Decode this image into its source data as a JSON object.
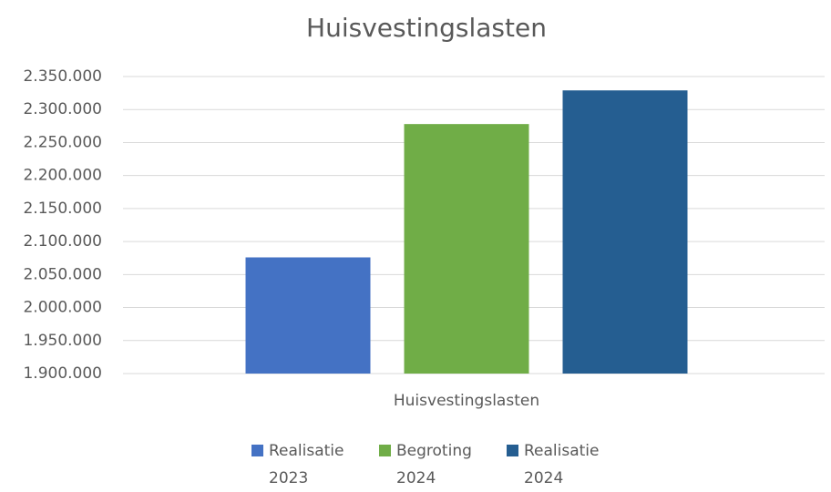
{
  "chart_data": {
    "type": "bar",
    "title": "Huisvestingslasten",
    "categories": [
      "Huisvestingslasten"
    ],
    "series": [
      {
        "name": "Realisatie 2023",
        "color": "#4472c4",
        "values": [
          2076000
        ]
      },
      {
        "name": "Begroting 2024",
        "color": "#70ad47",
        "values": [
          2278000
        ]
      },
      {
        "name": "Realisatie 2024",
        "color": "#255e91",
        "values": [
          2329000
        ]
      }
    ],
    "ylim": [
      1900000,
      2350000
    ],
    "yticks": [
      {
        "value": 1900000,
        "label": "1.900.000"
      },
      {
        "value": 1950000,
        "label": "1.950.000"
      },
      {
        "value": 2000000,
        "label": "2.000.000"
      },
      {
        "value": 2050000,
        "label": "2.050.000"
      },
      {
        "value": 2100000,
        "label": "2.100.000"
      },
      {
        "value": 2150000,
        "label": "2.150.000"
      },
      {
        "value": 2200000,
        "label": "2.200.000"
      },
      {
        "value": 2250000,
        "label": "2.250.000"
      },
      {
        "value": 2300000,
        "label": "2.300.000"
      },
      {
        "value": 2350000,
        "label": "2.350.000"
      }
    ],
    "grid": true,
    "legend": "bottom"
  }
}
